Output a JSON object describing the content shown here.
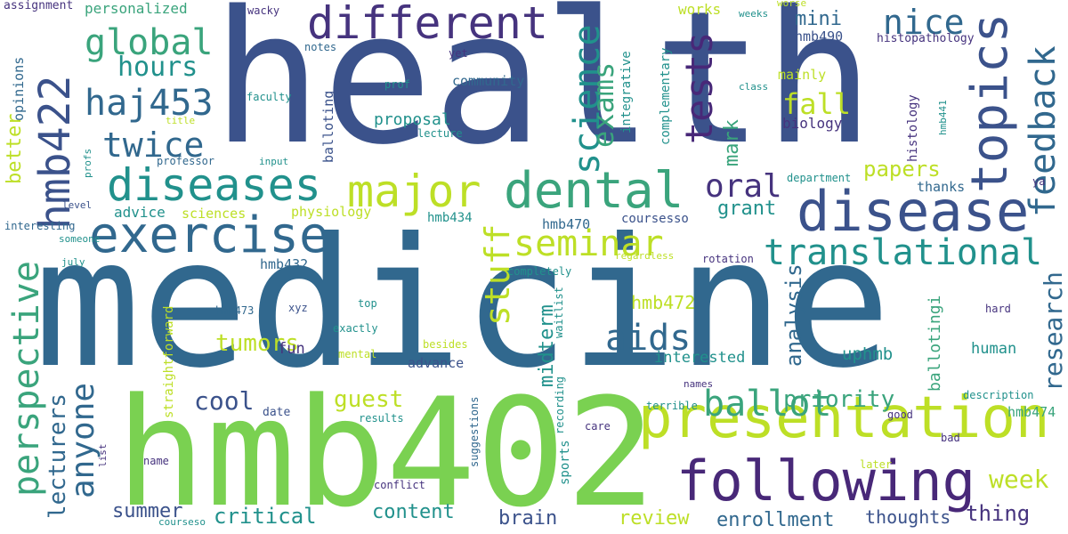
{
  "word_cloud": {
    "palette": {
      "navy": "#3b528b",
      "blue": "#31688e",
      "teal": "#21918c",
      "green": "#3aa47c",
      "lime": "#7ad151",
      "yellow": "#bddf26",
      "purple": "#482878",
      "indigo": "#46337e"
    },
    "words": [
      {
        "text": "health"
      },
      {
        "text": "medicine"
      },
      {
        "text": "hmb402"
      },
      {
        "text": "disease"
      },
      {
        "text": "presentation"
      },
      {
        "text": "following"
      },
      {
        "text": "dental"
      },
      {
        "text": "different"
      },
      {
        "text": "exercise"
      },
      {
        "text": "diseases"
      },
      {
        "text": "major"
      },
      {
        "text": "seminar"
      },
      {
        "text": "topics"
      },
      {
        "text": "translational"
      },
      {
        "text": "hmb422"
      },
      {
        "text": "feedback"
      },
      {
        "text": "perspective"
      },
      {
        "text": "global"
      },
      {
        "text": "hours"
      },
      {
        "text": "haj453"
      },
      {
        "text": "twice"
      },
      {
        "text": "nice"
      },
      {
        "text": "tests"
      },
      {
        "text": "science"
      },
      {
        "text": "exams"
      },
      {
        "text": "stuff"
      },
      {
        "text": "ballot"
      },
      {
        "text": "aids"
      },
      {
        "text": "anyone"
      },
      {
        "text": "research"
      },
      {
        "text": "oral"
      },
      {
        "text": "lecturers"
      },
      {
        "text": "week"
      },
      {
        "text": "personalized"
      },
      {
        "text": "assignment"
      },
      {
        "text": "opinions"
      },
      {
        "text": "better"
      },
      {
        "text": "advice"
      },
      {
        "text": "sciences"
      },
      {
        "text": "physiology"
      },
      {
        "text": "proposal"
      },
      {
        "text": "community"
      },
      {
        "text": "balloting"
      },
      {
        "text": "integrative"
      },
      {
        "text": "complementary"
      },
      {
        "text": "mainly"
      },
      {
        "text": "histology"
      },
      {
        "text": "histopathology"
      },
      {
        "text": "hmb490"
      },
      {
        "text": "mini"
      },
      {
        "text": "works"
      },
      {
        "text": "wacky"
      },
      {
        "text": "weeks"
      },
      {
        "text": "worse"
      },
      {
        "text": "notes"
      },
      {
        "text": "yet"
      },
      {
        "text": "prof"
      },
      {
        "text": "faculty"
      },
      {
        "text": "class"
      },
      {
        "text": "lecture"
      },
      {
        "text": "title"
      },
      {
        "text": "professor"
      },
      {
        "text": "input"
      },
      {
        "text": "profs"
      },
      {
        "text": "level"
      },
      {
        "text": "interesting"
      },
      {
        "text": "someone"
      },
      {
        "text": "july"
      },
      {
        "text": "fall"
      },
      {
        "text": "biology"
      },
      {
        "text": "mark"
      },
      {
        "text": "papers"
      },
      {
        "text": "grant"
      },
      {
        "text": "thanks"
      },
      {
        "text": "department"
      },
      {
        "text": "ya"
      },
      {
        "text": "hmb441"
      },
      {
        "text": "hmb434"
      },
      {
        "text": "hmb470"
      },
      {
        "text": "coursesso"
      },
      {
        "text": "hmb432"
      },
      {
        "text": "regardless"
      },
      {
        "text": "rotation"
      },
      {
        "text": "completely"
      },
      {
        "text": "waitlist"
      },
      {
        "text": "midterm"
      },
      {
        "text": "analysis"
      },
      {
        "text": "hmb472"
      },
      {
        "text": "ballotingi"
      },
      {
        "text": "tumors"
      },
      {
        "text": "hmb473"
      },
      {
        "text": "xyz"
      },
      {
        "text": "top"
      },
      {
        "text": "exactly"
      },
      {
        "text": "straightforward"
      },
      {
        "text": "mental"
      },
      {
        "text": "besides"
      },
      {
        "text": "advance"
      },
      {
        "text": "interested"
      },
      {
        "text": "uphmb"
      },
      {
        "text": "human"
      },
      {
        "text": "hard"
      },
      {
        "text": "cool"
      },
      {
        "text": "fun"
      },
      {
        "text": "guest"
      },
      {
        "text": "date"
      },
      {
        "text": "results"
      },
      {
        "text": "priority"
      },
      {
        "text": "names"
      },
      {
        "text": "terrible"
      },
      {
        "text": "description"
      },
      {
        "text": "hmb474"
      },
      {
        "text": "good"
      },
      {
        "text": "bad"
      },
      {
        "text": "recording"
      },
      {
        "text": "suggestions"
      },
      {
        "text": "care"
      },
      {
        "text": "sports"
      },
      {
        "text": "later"
      },
      {
        "text": "list"
      },
      {
        "text": "name"
      },
      {
        "text": "conflict"
      },
      {
        "text": "summer"
      },
      {
        "text": "critical"
      },
      {
        "text": "content"
      },
      {
        "text": "brain"
      },
      {
        "text": "review"
      },
      {
        "text": "enrollment"
      },
      {
        "text": "thoughts"
      },
      {
        "text": "thing"
      },
      {
        "text": "courseso"
      }
    ]
  }
}
